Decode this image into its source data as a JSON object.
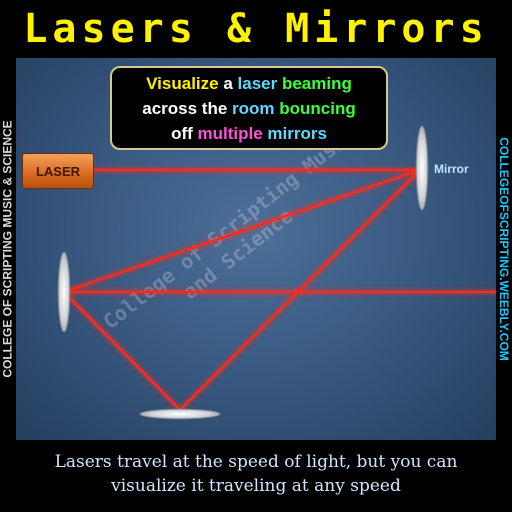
{
  "title": "Lasers & Mirrors",
  "caption": {
    "line1": [
      {
        "text": "Visualize ",
        "color": "yellow"
      },
      {
        "text": "a ",
        "color": "white"
      },
      {
        "text": "laser ",
        "color": "cyan"
      },
      {
        "text": "beaming",
        "color": "green"
      }
    ],
    "line2": [
      {
        "text": "across the ",
        "color": "white"
      },
      {
        "text": "room ",
        "color": "cyan"
      },
      {
        "text": "bouncing",
        "color": "green"
      }
    ],
    "line3": [
      {
        "text": "off ",
        "color": "white"
      },
      {
        "text": "multiple ",
        "color": "pink"
      },
      {
        "text": "mirrors",
        "color": "cyan"
      }
    ]
  },
  "laser_label": "LASER",
  "mirror_label": "Mirror",
  "side_left": "COLLEGE OF SCRIPTING MUSIC & SCIENCE",
  "side_right": "COLLEGEOFSCRIPTING.WEEBLY.COM",
  "watermark": "College of Scripting Music and Science",
  "footer": {
    "line1": "Lasers travel at the speed of light, but you can",
    "line2": "visualize it traveling at any speed"
  },
  "colors": {
    "title": "#fff200",
    "beam": "#ff2a1a",
    "laser_body": "#d86a1f",
    "background": "#36567d"
  }
}
